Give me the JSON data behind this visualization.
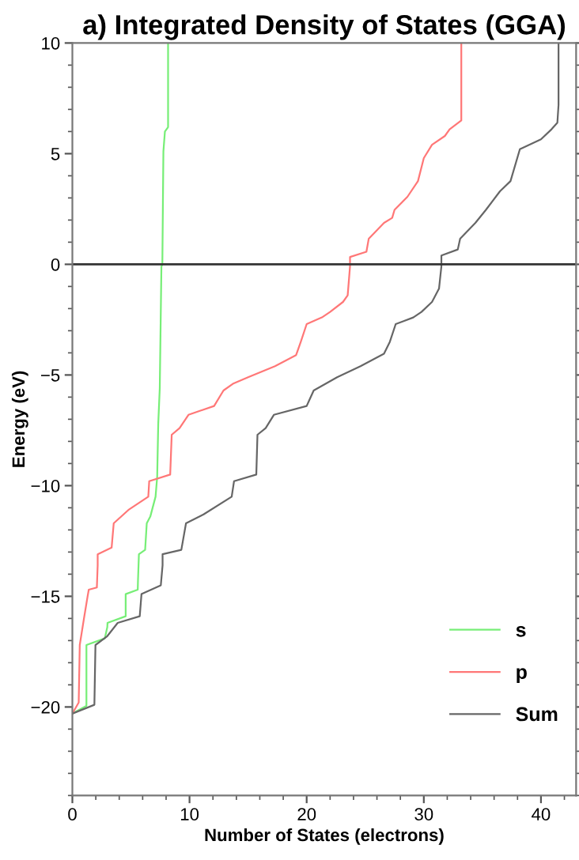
{
  "chart_data": {
    "type": "line",
    "title": "a) Integrated Density of States (GGA)",
    "xlabel": "Number of States (electrons)",
    "ylabel": "Energy (eV)",
    "xlim": [
      0,
      43
    ],
    "xticks": [
      0,
      10,
      20,
      30,
      40
    ],
    "ylim": [
      -24,
      10
    ],
    "yticks": [
      {
        "value": -20,
        "label": "−20"
      },
      {
        "value": -15,
        "label": "−15"
      },
      {
        "value": -10,
        "label": "−10"
      },
      {
        "value": -5,
        "label": "−5"
      },
      0,
      5,
      10
    ],
    "grid": false,
    "legend": "bottom right",
    "marker": "none",
    "line_style": "solid",
    "ref_lines": [
      {
        "axis": "y",
        "value": 0,
        "color": "#333333"
      }
    ],
    "series": [
      {
        "name": "s",
        "color": "#77ee77",
        "x": [
          0,
          1.2,
          1.2,
          2.77,
          2.98,
          3.0,
          4.55,
          4.55,
          5.58,
          5.6,
          5.68,
          6.21,
          6.35,
          6.65,
          7.1,
          7.24,
          7.33,
          7.46,
          7.6,
          7.68,
          7.77,
          7.9,
          8.17,
          8.17
        ],
        "values": [
          -20.3,
          -19.95,
          -17.2,
          -16.9,
          -16.4,
          -16.2,
          -15.9,
          -14.9,
          -14.7,
          -14.3,
          -13.1,
          -12.9,
          -11.7,
          -11.4,
          -10.5,
          -9.6,
          -7.2,
          -5.6,
          -0.1,
          0,
          5.1,
          6.0,
          6.2,
          10
        ]
      },
      {
        "name": "p",
        "color": "#ff7777",
        "x": [
          0,
          0.54,
          0.63,
          0.99,
          1.3,
          1.4,
          2.09,
          2.16,
          2.16,
          3.35,
          3.53,
          4.78,
          6.48,
          6.56,
          8.35,
          8.48,
          9.15,
          9.91,
          12.1,
          12.9,
          13.7,
          15.0,
          17.3,
          19.1,
          19.5,
          20.0,
          21.3,
          22.0,
          23.1,
          23.5,
          23.7,
          23.7,
          25.1,
          25.3,
          26.6,
          27.3,
          27.5,
          28.6,
          29.5,
          30.0,
          30.7,
          31.8,
          32.2,
          33.2,
          33.2
        ],
        "values": [
          -20.3,
          -19.8,
          -17.2,
          -16.0,
          -15.0,
          -14.7,
          -14.6,
          -13.6,
          -13.1,
          -12.8,
          -11.7,
          -11.1,
          -10.5,
          -9.8,
          -9.5,
          -7.7,
          -7.4,
          -6.8,
          -6.4,
          -5.7,
          -5.4,
          -5.1,
          -4.6,
          -4.1,
          -3.5,
          -2.7,
          -2.4,
          -2.15,
          -1.7,
          -1.4,
          -0.1,
          0.33,
          0.57,
          1.16,
          1.87,
          2.1,
          2.46,
          3.05,
          3.76,
          4.8,
          5.4,
          5.8,
          6.1,
          6.5,
          10
        ]
      },
      {
        "name": "Sum",
        "color": "#666666",
        "x": [
          0,
          1.88,
          1.97,
          2.98,
          3.87,
          5.75,
          5.9,
          7.55,
          7.7,
          7.7,
          9.3,
          9.7,
          11.2,
          13.6,
          13.8,
          15.7,
          15.8,
          16.5,
          17.2,
          20.0,
          20.6,
          22.6,
          24.6,
          26.6,
          27.1,
          27.6,
          29.1,
          29.8,
          30.7,
          31.3,
          31.5,
          31.5,
          32.9,
          33.1,
          34.4,
          35.3,
          36.5,
          37.4,
          38.2,
          40.0,
          40.9,
          41.4,
          41.5,
          41.5
        ],
        "values": [
          -20.3,
          -19.9,
          -17.2,
          -16.8,
          -16.2,
          -15.9,
          -14.9,
          -14.5,
          -13.6,
          -13.1,
          -12.9,
          -11.7,
          -11.3,
          -10.5,
          -9.8,
          -9.5,
          -7.7,
          -7.4,
          -6.8,
          -6.4,
          -5.7,
          -5.1,
          -4.6,
          -4.04,
          -3.5,
          -2.7,
          -2.4,
          -2.15,
          -1.7,
          -1.09,
          -0.1,
          0.4,
          0.67,
          1.16,
          1.87,
          2.46,
          3.3,
          3.76,
          5.2,
          5.65,
          6.1,
          6.4,
          7.2,
          10
        ]
      }
    ]
  }
}
